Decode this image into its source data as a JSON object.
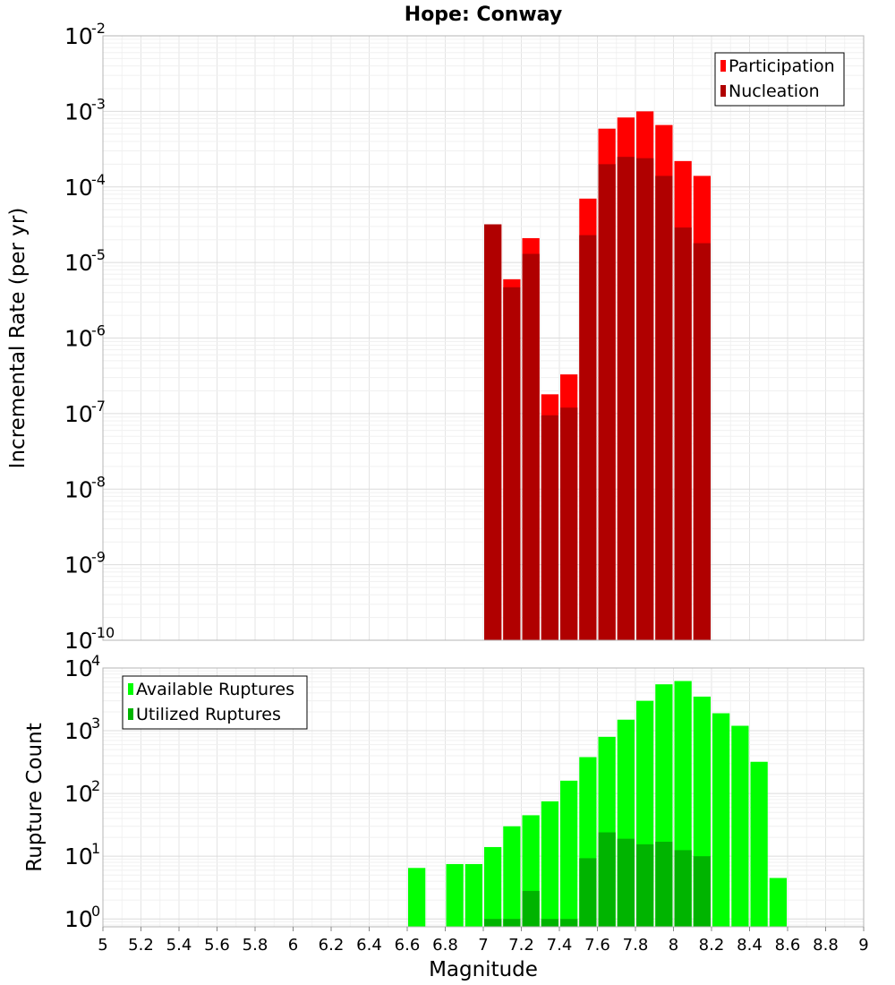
{
  "chart_data": [
    {
      "type": "bar",
      "title": "Hope: Conway",
      "ylabel": "Incremental Rate (per yr)",
      "xlabel": "",
      "yscale": "log",
      "ylim": [
        1e-10,
        0.01
      ],
      "xlim": [
        5,
        9
      ],
      "y_ticks": [
        {
          "base": "10",
          "exp": "-10"
        },
        {
          "base": "10",
          "exp": "-9"
        },
        {
          "base": "10",
          "exp": "-8"
        },
        {
          "base": "10",
          "exp": "-7"
        },
        {
          "base": "10",
          "exp": "-6"
        },
        {
          "base": "10",
          "exp": "-5"
        },
        {
          "base": "10",
          "exp": "-4"
        },
        {
          "base": "10",
          "exp": "-3"
        },
        {
          "base": "10",
          "exp": "-2"
        }
      ],
      "bin_width": 0.1,
      "legend_position": "top-right",
      "grid": true,
      "series": [
        {
          "name": "Participation",
          "color": "#ff0000",
          "x": [
            7.05,
            7.15,
            7.25,
            7.35,
            7.45,
            7.55,
            7.65,
            7.75,
            7.85,
            7.95,
            8.05,
            8.15
          ],
          "values": [
            3.2e-05,
            6e-06,
            2.1e-05,
            1.8e-07,
            3.3e-07,
            7e-05,
            0.00059,
            0.00083,
            0.001,
            0.00066,
            0.00022,
            0.00014
          ]
        },
        {
          "name": "Nucleation",
          "color": "#b00000",
          "x": [
            7.05,
            7.15,
            7.25,
            7.35,
            7.45,
            7.55,
            7.65,
            7.75,
            7.85,
            7.95,
            8.05,
            8.15
          ],
          "values": [
            3.2e-05,
            4.7e-06,
            1.3e-05,
            9.5e-08,
            1.2e-07,
            2.3e-05,
            0.0002,
            0.00025,
            0.00024,
            0.00014,
            2.9e-05,
            1.8e-05
          ]
        }
      ]
    },
    {
      "type": "bar",
      "title": "",
      "ylabel": "Rupture Count",
      "xlabel": "Magnitude",
      "yscale": "log",
      "ylim": [
        0.75,
        10000.0
      ],
      "xlim": [
        5,
        9
      ],
      "x_ticks": [
        "5",
        "5.2",
        "5.4",
        "5.6",
        "5.8",
        "6",
        "6.2",
        "6.4",
        "6.6",
        "6.8",
        "7",
        "7.2",
        "7.4",
        "7.6",
        "7.8",
        "8",
        "8.2",
        "8.4",
        "8.6",
        "8.8",
        "9"
      ],
      "y_ticks": [
        {
          "base": "10",
          "exp": "0",
          "value": 1
        },
        {
          "base": "10",
          "exp": "1",
          "value": 10
        },
        {
          "base": "10",
          "exp": "2",
          "value": 100
        },
        {
          "base": "10",
          "exp": "3",
          "value": 1000
        },
        {
          "base": "10",
          "exp": "4",
          "value": 10000
        }
      ],
      "bin_width": 0.1,
      "legend_position": "top-left",
      "grid": true,
      "series": [
        {
          "name": "Available Ruptures",
          "color": "#00ff00",
          "x": [
            6.65,
            6.85,
            6.95,
            7.05,
            7.15,
            7.25,
            7.35,
            7.45,
            7.55,
            7.65,
            7.75,
            7.85,
            7.95,
            8.05,
            8.15,
            8.25,
            8.35,
            8.45,
            8.55
          ],
          "values": [
            6.5,
            7.5,
            7.5,
            14,
            30,
            45,
            75,
            160,
            380,
            800,
            1500,
            3000,
            5500,
            6200,
            3500,
            1900,
            1200,
            320,
            4.5
          ]
        },
        {
          "name": "Utilized Ruptures",
          "color": "#00b400",
          "x": [
            7.05,
            7.15,
            7.25,
            7.35,
            7.45,
            7.55,
            7.65,
            7.75,
            7.85,
            7.95,
            8.05,
            8.15
          ],
          "values": [
            1,
            1,
            2.8,
            1,
            1,
            9.3,
            24,
            19,
            15.5,
            17,
            12.5,
            10
          ]
        }
      ]
    }
  ]
}
